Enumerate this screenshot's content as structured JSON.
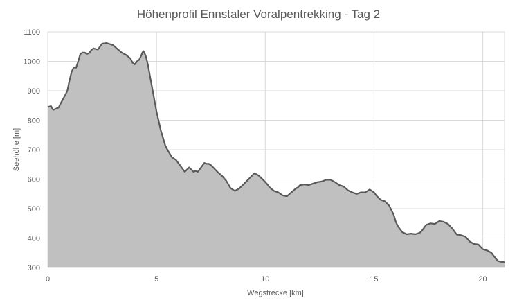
{
  "chart_data": {
    "type": "area",
    "title": "Höhenprofil Ennstaler Voralpentrekking - Tag 2",
    "xlabel": "Wegstrecke [km]",
    "ylabel": "Seehöhe [m]",
    "xlim": [
      0,
      21
    ],
    "ylim": [
      300,
      1100
    ],
    "xticks": [
      0,
      5,
      10,
      15,
      20
    ],
    "yticks": [
      300,
      400,
      500,
      600,
      700,
      800,
      900,
      1000,
      1100
    ],
    "grid": true,
    "legend": "none",
    "colors": {
      "fill": "#c0c0c0",
      "line": "#595959",
      "grid": "#d9d9d9",
      "text": "#595959"
    },
    "series": [
      {
        "x": [
          0,
          0.15,
          0.25,
          0.4,
          0.5,
          0.6,
          0.8,
          0.9,
          1.0,
          1.1,
          1.2,
          1.3,
          1.4,
          1.5,
          1.6,
          1.7,
          1.8,
          1.9,
          2.0,
          2.1,
          2.3,
          2.5,
          2.7,
          2.8,
          3.0,
          3.2,
          3.4,
          3.6,
          3.8,
          3.9,
          4.0,
          4.1,
          4.2,
          4.3,
          4.35,
          4.4,
          4.5,
          4.6,
          4.7,
          4.8,
          4.9,
          5.0,
          5.2,
          5.3,
          5.4,
          5.5,
          5.7,
          5.9,
          6.1,
          6.3,
          6.5,
          6.7,
          6.8,
          6.9,
          7.0,
          7.1,
          7.2,
          7.3,
          7.4,
          7.5,
          7.6,
          7.8,
          8.0,
          8.2,
          8.4,
          8.6,
          8.8,
          8.9,
          9.0,
          9.1,
          9.3,
          9.5,
          9.7,
          9.8,
          9.9,
          10.0,
          10.1,
          10.2,
          10.4,
          10.6,
          10.8,
          11.0,
          11.2,
          11.4,
          11.5,
          11.6,
          11.8,
          12.0,
          12.2,
          12.4,
          12.6,
          12.8,
          13.0,
          13.2,
          13.4,
          13.6,
          13.8,
          14.0,
          14.2,
          14.4,
          14.6,
          14.8,
          15.0,
          15.1,
          15.3,
          15.5,
          15.7,
          15.9,
          16.0,
          16.1,
          16.3,
          16.5,
          16.7,
          16.9,
          17.1,
          17.2,
          17.4,
          17.6,
          17.8,
          18.0,
          18.2,
          18.4,
          18.6,
          18.8,
          19.0,
          19.2,
          19.4,
          19.6,
          19.8,
          20.0,
          20.2,
          20.4,
          20.6,
          20.7,
          20.8,
          21.0
        ],
        "y": [
          845,
          848,
          835,
          840,
          843,
          858,
          885,
          900,
          935,
          965,
          980,
          978,
          1000,
          1025,
          1030,
          1030,
          1025,
          1028,
          1038,
          1044,
          1040,
          1060,
          1062,
          1060,
          1055,
          1042,
          1030,
          1022,
          1010,
          995,
          990,
          1000,
          1005,
          1020,
          1030,
          1035,
          1020,
          990,
          950,
          910,
          870,
          830,
          765,
          740,
          715,
          700,
          675,
          665,
          645,
          625,
          640,
          625,
          628,
          625,
          635,
          645,
          655,
          652,
          652,
          648,
          640,
          625,
          612,
          595,
          570,
          560,
          568,
          575,
          582,
          590,
          605,
          620,
          612,
          605,
          598,
          590,
          582,
          572,
          560,
          555,
          545,
          542,
          555,
          568,
          572,
          580,
          582,
          580,
          585,
          590,
          592,
          598,
          598,
          590,
          580,
          575,
          562,
          555,
          550,
          555,
          555,
          565,
          555,
          545,
          530,
          525,
          510,
          480,
          455,
          440,
          420,
          413,
          415,
          413,
          418,
          425,
          445,
          450,
          448,
          458,
          455,
          448,
          432,
          412,
          410,
          405,
          388,
          380,
          378,
          362,
          358,
          350,
          330,
          322,
          320,
          318
        ]
      }
    ]
  }
}
